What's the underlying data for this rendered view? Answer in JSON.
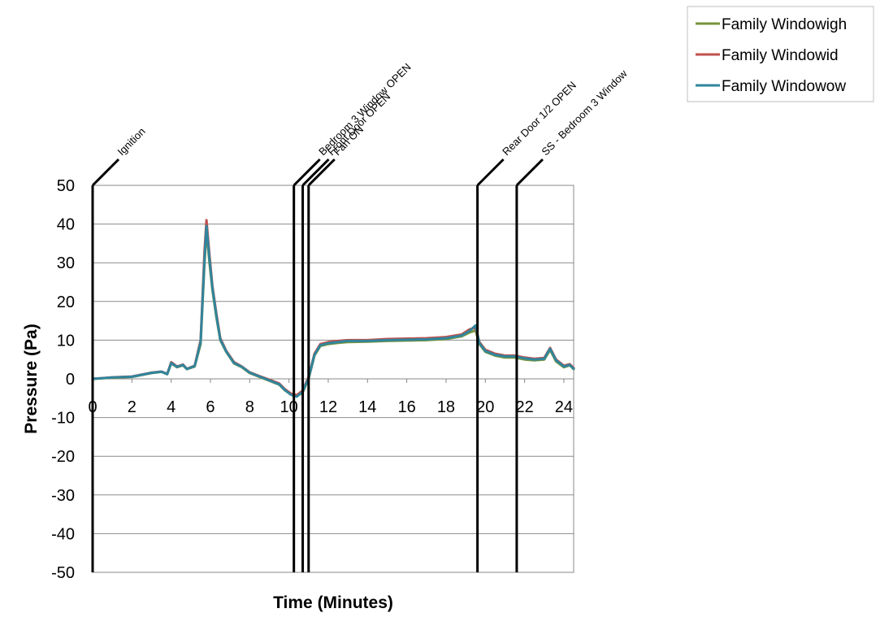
{
  "chart_data": {
    "type": "line",
    "title": "",
    "xlabel": "Time (Minutes)",
    "ylabel": "Pressure (Pa)",
    "xlim": [
      0,
      24.5
    ],
    "ylim": [
      -50,
      50
    ],
    "x_ticks": [
      0,
      2,
      4,
      6,
      8,
      10,
      12,
      14,
      16,
      18,
      20,
      22,
      24
    ],
    "y_ticks": [
      50,
      40,
      30,
      20,
      10,
      0,
      -10,
      -20,
      -30,
      -40,
      -50
    ],
    "grid": "horizontal",
    "legend_position": "top-right (outside plot)",
    "events": [
      {
        "label": "Ignition",
        "x": 0
      },
      {
        "label": "Bedroom 3 Window OPEN",
        "x": 10.25
      },
      {
        "label": "Front Door OPEN",
        "x": 10.7
      },
      {
        "label": "Fan ON",
        "x": 11.0
      },
      {
        "label": "Rear Door 1/2 OPEN",
        "x": 19.6
      },
      {
        "label": "SS - Bedroom 3 Window",
        "x": 21.6
      }
    ],
    "series": [
      {
        "name": "Family Windowigh",
        "color": "#77933c",
        "points": [
          [
            0,
            0
          ],
          [
            1,
            0.3
          ],
          [
            2,
            0.5
          ],
          [
            3,
            1.5
          ],
          [
            3.5,
            1.8
          ],
          [
            3.8,
            1.2
          ],
          [
            4,
            4
          ],
          [
            4.3,
            3
          ],
          [
            4.6,
            3.5
          ],
          [
            4.8,
            2.5
          ],
          [
            5.2,
            3.2
          ],
          [
            5.5,
            9
          ],
          [
            5.7,
            30
          ],
          [
            5.8,
            38.5
          ],
          [
            5.95,
            30
          ],
          [
            6.1,
            23
          ],
          [
            6.3,
            16
          ],
          [
            6.5,
            10
          ],
          [
            6.8,
            7
          ],
          [
            7.2,
            4
          ],
          [
            7.6,
            3
          ],
          [
            8,
            1.5
          ],
          [
            8.5,
            0.5
          ],
          [
            9,
            -0.5
          ],
          [
            9.5,
            -1.5
          ],
          [
            9.8,
            -3
          ],
          [
            10.1,
            -4
          ],
          [
            10.4,
            -4.5
          ],
          [
            10.7,
            -3.5
          ],
          [
            11,
            0
          ],
          [
            11.3,
            6
          ],
          [
            11.6,
            8.5
          ],
          [
            12,
            9
          ],
          [
            12.5,
            9.3
          ],
          [
            13,
            9.5
          ],
          [
            14,
            9.6
          ],
          [
            15,
            9.8
          ],
          [
            16,
            9.9
          ],
          [
            17,
            10
          ],
          [
            18,
            10.3
          ],
          [
            18.8,
            11
          ],
          [
            19.2,
            12
          ],
          [
            19.5,
            12.5
          ],
          [
            19.7,
            9
          ],
          [
            20,
            7
          ],
          [
            20.5,
            6
          ],
          [
            21,
            5.5
          ],
          [
            21.5,
            5.5
          ],
          [
            22,
            5
          ],
          [
            22.5,
            4.8
          ],
          [
            23,
            5
          ],
          [
            23.3,
            7.5
          ],
          [
            23.6,
            4.5
          ],
          [
            24,
            3
          ],
          [
            24.3,
            3.5
          ],
          [
            24.5,
            2.5
          ]
        ]
      },
      {
        "name": "Family Windowid",
        "color": "#c0504d",
        "points": [
          [
            0,
            0
          ],
          [
            1,
            0.4
          ],
          [
            2,
            0.6
          ],
          [
            3,
            1.6
          ],
          [
            3.5,
            1.9
          ],
          [
            3.8,
            1.3
          ],
          [
            4,
            4.3
          ],
          [
            4.3,
            3.2
          ],
          [
            4.6,
            3.7
          ],
          [
            4.8,
            2.6
          ],
          [
            5.2,
            3.4
          ],
          [
            5.5,
            10
          ],
          [
            5.7,
            33
          ],
          [
            5.8,
            41
          ],
          [
            5.95,
            32
          ],
          [
            6.1,
            24
          ],
          [
            6.3,
            17
          ],
          [
            6.5,
            10.5
          ],
          [
            6.8,
            7.3
          ],
          [
            7.2,
            4.3
          ],
          [
            7.6,
            3.2
          ],
          [
            8,
            1.7
          ],
          [
            8.5,
            0.7
          ],
          [
            9,
            -0.2
          ],
          [
            9.5,
            -1.2
          ],
          [
            9.8,
            -2.7
          ],
          [
            10.1,
            -3.8
          ],
          [
            10.4,
            -4.2
          ],
          [
            10.7,
            -3
          ],
          [
            11,
            0.5
          ],
          [
            11.3,
            6.5
          ],
          [
            11.6,
            9
          ],
          [
            12,
            9.5
          ],
          [
            12.5,
            9.8
          ],
          [
            13,
            10
          ],
          [
            14,
            10
          ],
          [
            15,
            10.3
          ],
          [
            16,
            10.4
          ],
          [
            17,
            10.5
          ],
          [
            18,
            10.8
          ],
          [
            18.8,
            11.5
          ],
          [
            19.2,
            12.8
          ],
          [
            19.5,
            13.2
          ],
          [
            19.7,
            9.5
          ],
          [
            20,
            7.5
          ],
          [
            20.5,
            6.5
          ],
          [
            21,
            6
          ],
          [
            21.5,
            6
          ],
          [
            22,
            5.5
          ],
          [
            22.5,
            5.2
          ],
          [
            23,
            5.4
          ],
          [
            23.3,
            8
          ],
          [
            23.6,
            5
          ],
          [
            24,
            3.4
          ],
          [
            24.3,
            3.8
          ],
          [
            24.5,
            2.8
          ]
        ]
      },
      {
        "name": "Family Windowow",
        "color": "#31859c",
        "points": [
          [
            0,
            0
          ],
          [
            1,
            0.35
          ],
          [
            2,
            0.55
          ],
          [
            3,
            1.55
          ],
          [
            3.5,
            1.85
          ],
          [
            3.8,
            1.25
          ],
          [
            4,
            4.1
          ],
          [
            4.3,
            3.1
          ],
          [
            4.6,
            3.6
          ],
          [
            4.8,
            2.55
          ],
          [
            5.2,
            3.3
          ],
          [
            5.5,
            9.5
          ],
          [
            5.7,
            31
          ],
          [
            5.8,
            39.5
          ],
          [
            5.95,
            31
          ],
          [
            6.1,
            23.5
          ],
          [
            6.3,
            16.5
          ],
          [
            6.5,
            10.2
          ],
          [
            6.8,
            7.1
          ],
          [
            7.2,
            4.1
          ],
          [
            7.6,
            3.1
          ],
          [
            8,
            1.6
          ],
          [
            8.5,
            0.6
          ],
          [
            9,
            -0.4
          ],
          [
            9.5,
            -1.4
          ],
          [
            9.8,
            -2.9
          ],
          [
            10.1,
            -4.1
          ],
          [
            10.4,
            -4.6
          ],
          [
            10.7,
            -3.3
          ],
          [
            11,
            0.2
          ],
          [
            11.3,
            6.2
          ],
          [
            11.6,
            8.7
          ],
          [
            12,
            9.2
          ],
          [
            12.5,
            9.5
          ],
          [
            13,
            9.8
          ],
          [
            14,
            9.8
          ],
          [
            15,
            10
          ],
          [
            16,
            10.1
          ],
          [
            17,
            10.2
          ],
          [
            18,
            10.5
          ],
          [
            18.8,
            11.2
          ],
          [
            19.2,
            12.4
          ],
          [
            19.5,
            13.8
          ],
          [
            19.7,
            9.2
          ],
          [
            20,
            7.2
          ],
          [
            20.5,
            6.2
          ],
          [
            21,
            5.8
          ],
          [
            21.5,
            5.8
          ],
          [
            22,
            5.3
          ],
          [
            22.5,
            5
          ],
          [
            23,
            5.2
          ],
          [
            23.3,
            7.8
          ],
          [
            23.6,
            4.8
          ],
          [
            24,
            3.2
          ],
          [
            24.3,
            3.6
          ],
          [
            24.5,
            2.6
          ]
        ]
      }
    ]
  }
}
